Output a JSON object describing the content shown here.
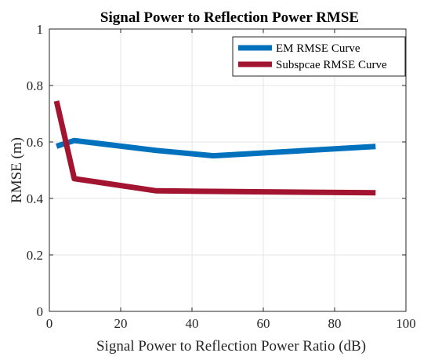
{
  "chart_data": {
    "type": "line",
    "title": "Signal Power to Reflection Power RMSE",
    "xlabel": "Signal Power to Reflection Power Ratio (dB)",
    "ylabel": "RMSE (m)",
    "xlim": [
      0,
      100
    ],
    "ylim": [
      0,
      1
    ],
    "xticks": [
      "0",
      "20",
      "40",
      "60",
      "80",
      "100"
    ],
    "yticks": [
      "0",
      "0.2",
      "0.4",
      "0.6",
      "0.8",
      "1"
    ],
    "grid": true,
    "legend_position": "top-right",
    "series": [
      {
        "name": "EM RMSE Curve",
        "color": "#0072BD",
        "x": [
          2,
          7,
          30,
          46,
          91.5
        ],
        "y": [
          0.585,
          0.605,
          0.57,
          0.551,
          0.584
        ]
      },
      {
        "name": "Subspcae RMSE Curve",
        "color": "#A2142F",
        "x": [
          2,
          7,
          30,
          46,
          91.5
        ],
        "y": [
          0.745,
          0.47,
          0.427,
          0.425,
          0.42
        ]
      }
    ]
  }
}
